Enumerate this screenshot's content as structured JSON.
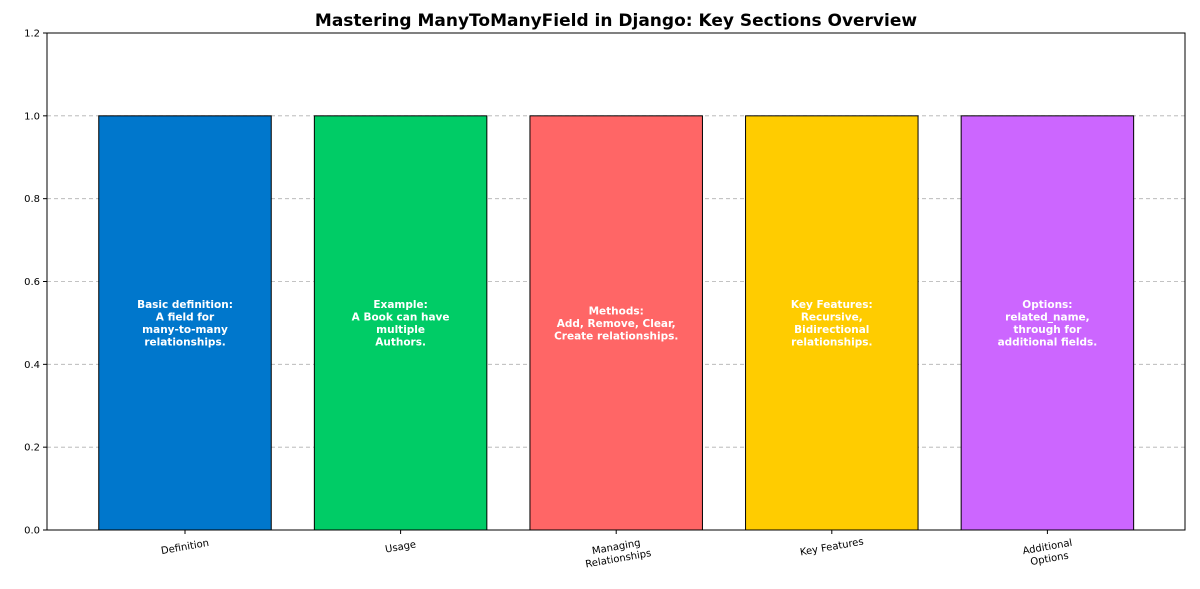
{
  "chart_data": {
    "type": "bar",
    "title": "Mastering ManyToManyField in Django: Key Sections Overview",
    "xlabel": "",
    "ylabel": "",
    "ylim": [
      0,
      1.2
    ],
    "yticks": [
      "0.0",
      "0.2",
      "0.4",
      "0.6",
      "0.8",
      "1.0",
      "1.2"
    ],
    "grid": "horizontal-dashed",
    "categories": [
      [
        "Definition"
      ],
      [
        "Usage"
      ],
      [
        "Managing",
        "Relationships"
      ],
      [
        "Key Features"
      ],
      [
        "Additional",
        "Options"
      ]
    ],
    "values": [
      1,
      1,
      1,
      1,
      1
    ],
    "colors": [
      "#0077CC",
      "#00CC66",
      "#FF6666",
      "#FFCC00",
      "#CC66FF"
    ],
    "bar_labels": [
      [
        "Basic definition:",
        "A field for",
        "many-to-many",
        "relationships."
      ],
      [
        "Example:",
        "A Book can have",
        "multiple",
        "Authors."
      ],
      [
        "Methods:",
        "Add, Remove, Clear,",
        "Create relationships."
      ],
      [
        "Key Features:",
        "Recursive,",
        "Bidirectional",
        "relationships."
      ],
      [
        "Options:",
        "related_name,",
        "through for",
        "additional fields."
      ]
    ],
    "bar_label_value": 0.5
  }
}
